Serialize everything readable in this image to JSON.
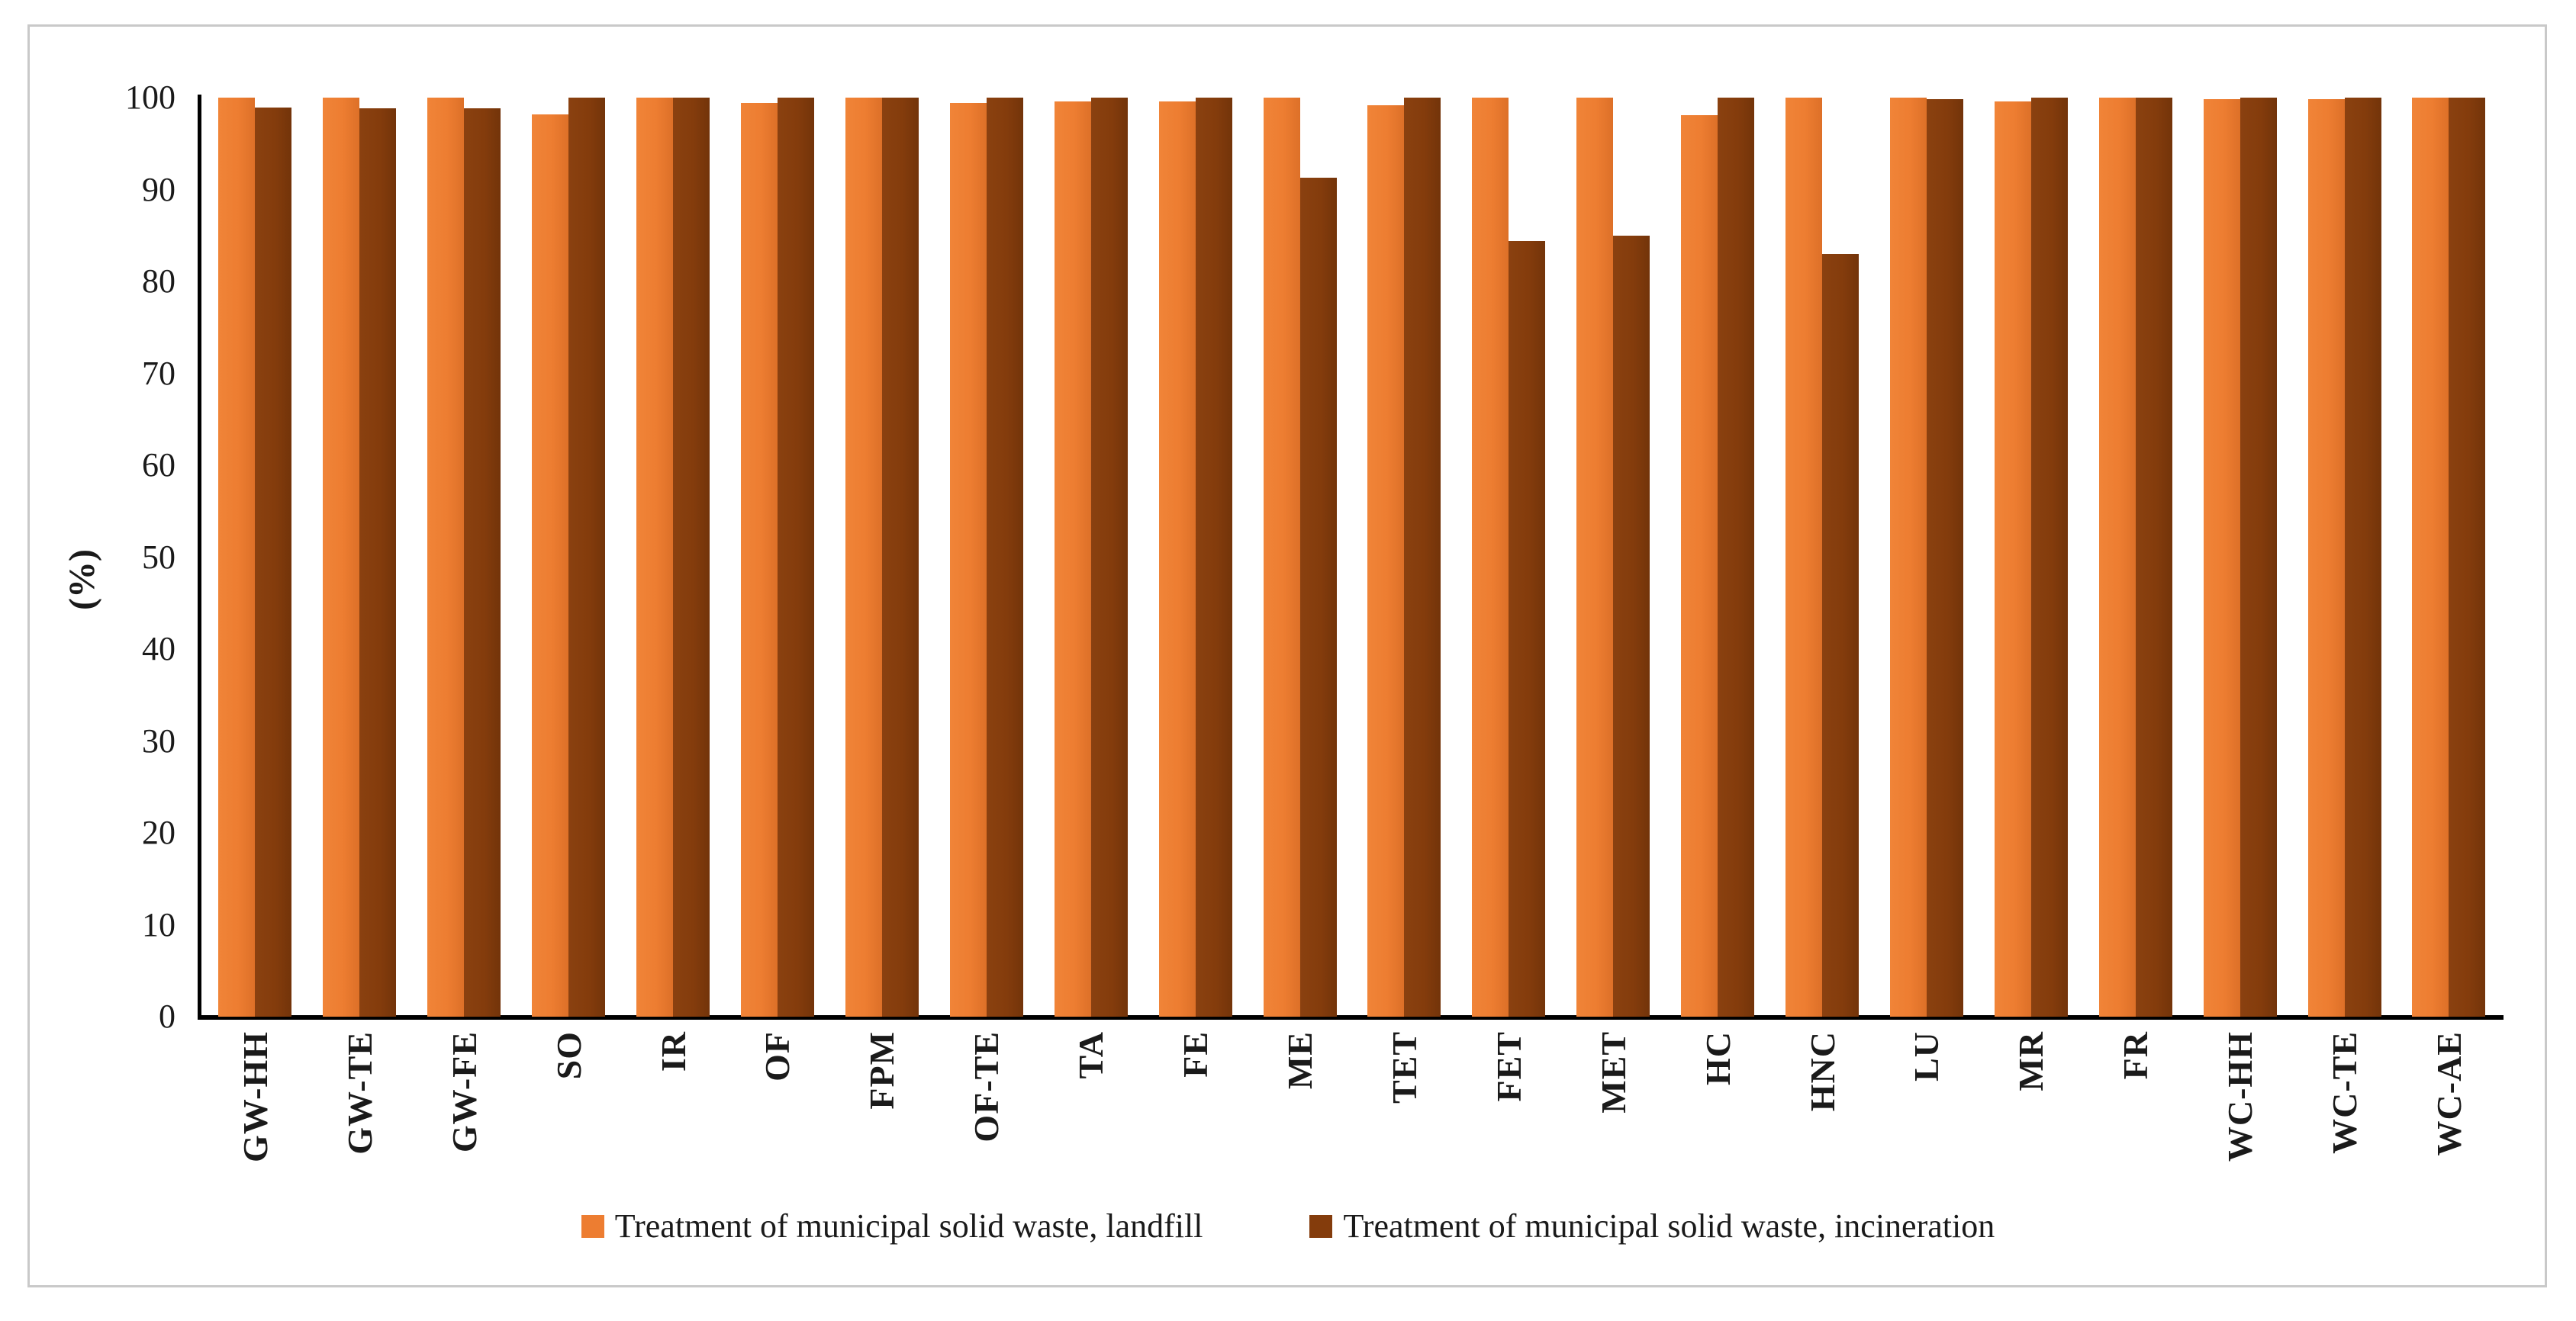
{
  "figure": {
    "ylabel": "(%)"
  },
  "colors": {
    "landfill": "#ED7D31",
    "incineration": "#843C0C",
    "axis": "#000000",
    "frame_border": "#C9C9C9",
    "text": "#1A1A1A",
    "background": "#FFFFFF"
  },
  "chart_data": {
    "type": "bar",
    "title": "",
    "xlabel": "",
    "ylabel": "(%)",
    "ylim": [
      0,
      100
    ],
    "yticks": [
      0,
      10,
      20,
      30,
      40,
      50,
      60,
      70,
      80,
      90,
      100
    ],
    "grid": false,
    "legend_position": "bottom-center",
    "bar_orientation": "vertical",
    "categories": [
      "GW-HH",
      "GW-TE",
      "GW-FE",
      "SO",
      "IR",
      "OF",
      "FPM",
      "OF-TE",
      "TA",
      "FE",
      "ME",
      "TET",
      "FET",
      "MET",
      "HC",
      "HNC",
      "LU",
      "MR",
      "FR",
      "WC-HH",
      "WC-TE",
      "WC-AE"
    ],
    "series": [
      {
        "name": "Treatment of municipal solid waste, landfill",
        "color": "#ED7D31",
        "values": [
          100,
          100,
          100,
          98.2,
          100,
          99.4,
          100,
          99.4,
          99.6,
          99.6,
          100,
          99.2,
          100,
          100,
          98.1,
          100,
          100,
          99.6,
          100,
          99.8,
          99.8,
          100
        ]
      },
      {
        "name": "Treatment of municipal solid waste, incineration",
        "color": "#843C0C",
        "values": [
          98.9,
          98.8,
          98.8,
          100,
          100,
          100,
          100,
          100,
          100,
          100,
          91.3,
          100,
          84.4,
          85,
          100,
          83,
          99.8,
          100,
          100,
          100,
          100,
          100
        ]
      }
    ]
  }
}
